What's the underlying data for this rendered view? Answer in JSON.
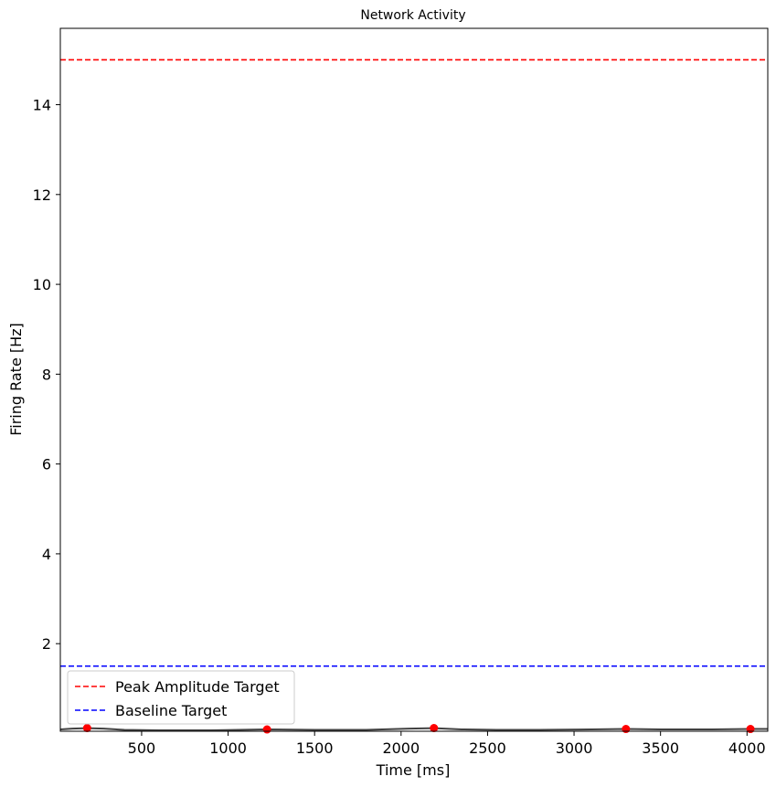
{
  "chart_data": {
    "type": "line",
    "title": "Network Activity",
    "xlabel": "Time [ms]",
    "ylabel": "Firing Rate [Hz]",
    "xlim": [
      30,
      4120
    ],
    "ylim": [
      0.05,
      15.7
    ],
    "xticks": [
      500,
      1000,
      1500,
      2000,
      2500,
      3000,
      3500,
      4000
    ],
    "yticks": [
      2,
      4,
      6,
      8,
      10,
      12,
      14
    ],
    "grid": false,
    "legend_position": "lower-left",
    "series": [
      {
        "type": "line",
        "color": "#404040",
        "x": [
          30,
          100,
          185,
          280,
          400,
          600,
          900,
          1225,
          1500,
          1800,
          2050,
          2190,
          2350,
          2550,
          2800,
          3100,
          3300,
          3500,
          3800,
          4020,
          4120
        ],
        "y": [
          0.09,
          0.11,
          0.12,
          0.11,
          0.08,
          0.07,
          0.07,
          0.09,
          0.08,
          0.08,
          0.11,
          0.12,
          0.09,
          0.08,
          0.08,
          0.09,
          0.1,
          0.09,
          0.09,
          0.1,
          0.1
        ]
      },
      {
        "type": "scatter",
        "color": "#ff0000",
        "x": [
          185,
          1225,
          2190,
          3300,
          4020
        ],
        "y": [
          0.12,
          0.09,
          0.12,
          0.1,
          0.1
        ]
      }
    ],
    "reference_lines": [
      {
        "name": "Peak Amplitude Target",
        "y": 15,
        "color": "#ff0000",
        "style": "dashed"
      },
      {
        "name": "Baseline Target",
        "y": 1.5,
        "color": "#0000ff",
        "style": "dashed"
      }
    ]
  }
}
